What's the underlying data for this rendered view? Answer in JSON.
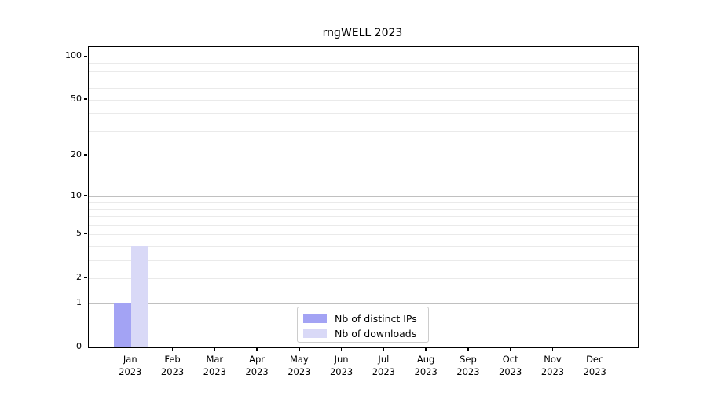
{
  "title": "rngWELL 2023",
  "legend": {
    "items": [
      {
        "label": "Nb of distinct IPs",
        "color": "#a3a3f4"
      },
      {
        "label": "Nb of downloads",
        "color": "#d9d9f7"
      }
    ]
  },
  "chart_data": {
    "type": "bar",
    "title": "rngWELL 2023",
    "categories": [
      "Jan 2023",
      "Feb 2023",
      "Mar 2023",
      "Apr 2023",
      "May 2023",
      "Jun 2023",
      "Jul 2023",
      "Aug 2023",
      "Sep 2023",
      "Oct 2023",
      "Nov 2023",
      "Dec 2023"
    ],
    "series": [
      {
        "name": "Nb of distinct IPs",
        "color": "#a3a3f4",
        "values": [
          1,
          0,
          0,
          0,
          0,
          0,
          0,
          0,
          0,
          0,
          0,
          0
        ]
      },
      {
        "name": "Nb of downloads",
        "color": "#d9d9f7",
        "values": [
          4,
          0,
          0,
          0,
          0,
          0,
          0,
          0,
          0,
          0,
          0,
          0
        ]
      }
    ],
    "yscale": "log1p",
    "ylim": [
      0,
      100
    ],
    "ytick_values": [
      0,
      1,
      2,
      5,
      10,
      20,
      50,
      100
    ],
    "ytick_labels": [
      "0",
      "1",
      "2",
      "5",
      "10",
      "20",
      "50",
      "100"
    ],
    "grid": {
      "major_values": [
        1,
        10,
        100
      ],
      "minor_values": [
        2,
        3,
        4,
        5,
        6,
        7,
        8,
        9,
        20,
        30,
        40,
        50,
        60,
        70,
        80,
        90
      ]
    },
    "legend_position": "lower center",
    "colors": {
      "major_grid": "#c0c0c0",
      "minor_grid": "#eaeaea",
      "axis": "#000000",
      "background": "#ffffff"
    }
  }
}
